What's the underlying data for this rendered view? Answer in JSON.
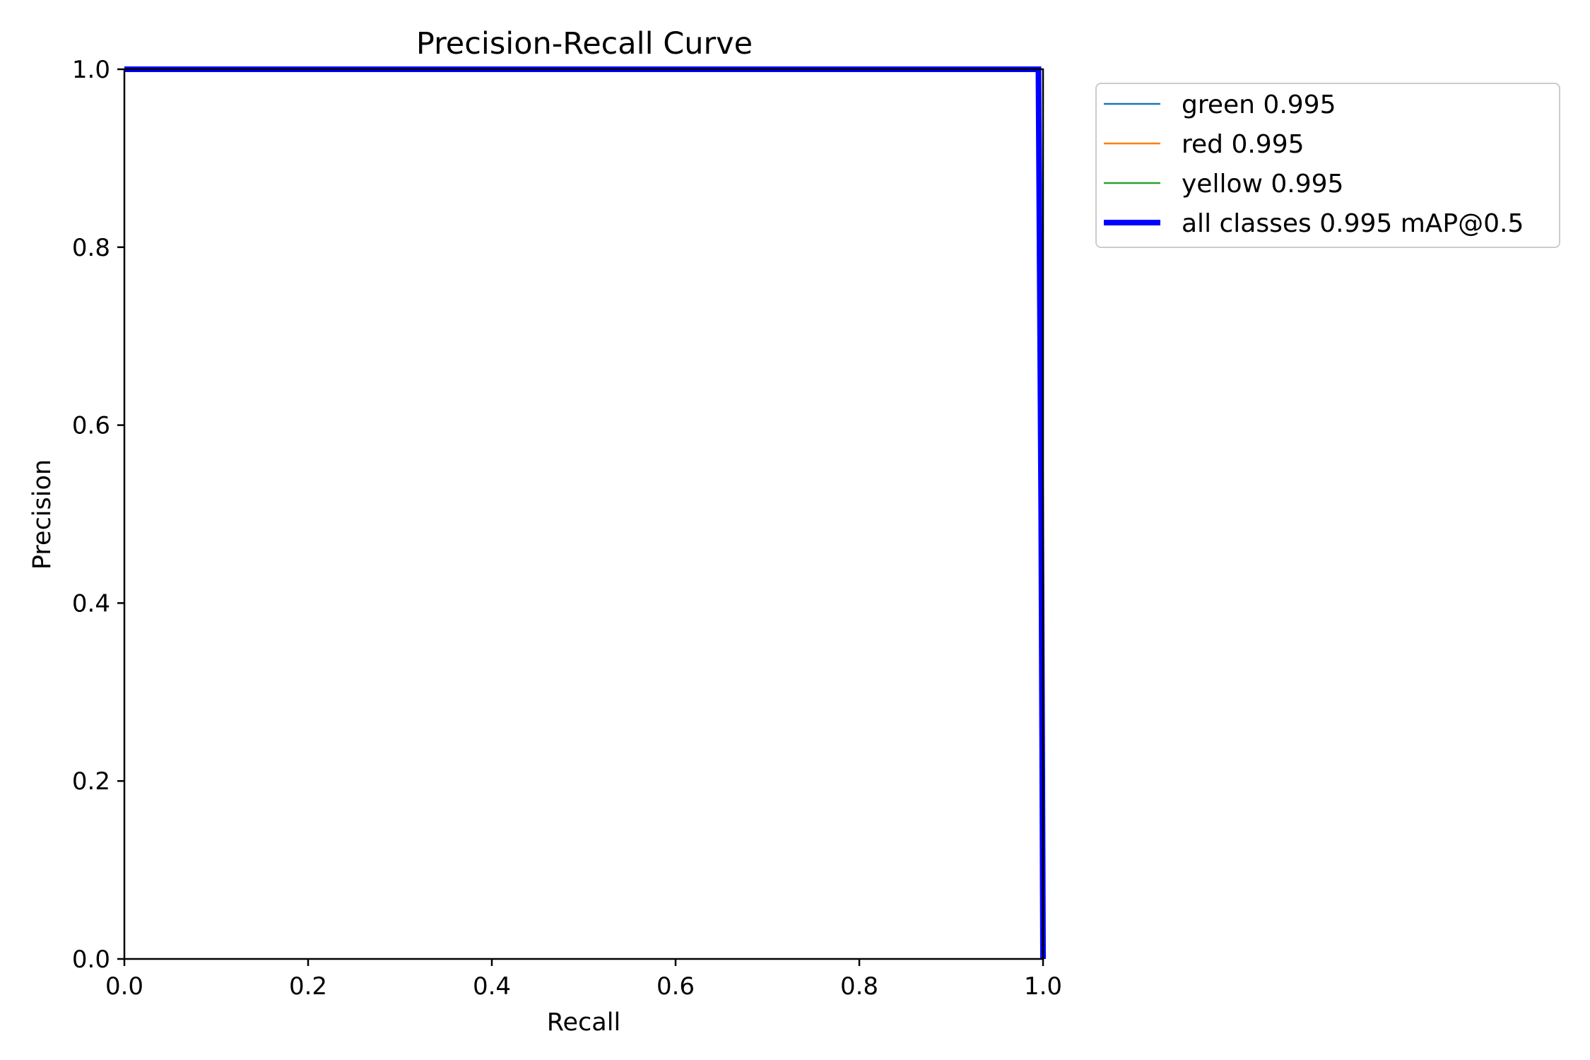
{
  "chart_data": {
    "type": "line",
    "title": "Precision-Recall Curve",
    "xlabel": "Recall",
    "ylabel": "Precision",
    "xlim": [
      0,
      1
    ],
    "ylim": [
      0,
      1
    ],
    "xticks": [
      "0.0",
      "0.2",
      "0.4",
      "0.6",
      "0.8",
      "1.0"
    ],
    "yticks": [
      "0.0",
      "0.2",
      "0.4",
      "0.6",
      "0.8",
      "1.0"
    ],
    "grid": false,
    "legend_position": "outside-top-right",
    "series": [
      {
        "name": "green 0.995",
        "color": "#1f77b4",
        "line": "thin",
        "x": [
          0,
          0.995,
          0.998,
          1.0
        ],
        "y": [
          1.0,
          1.0,
          0.5,
          0.0
        ]
      },
      {
        "name": "red 0.995",
        "color": "#ff7f0e",
        "line": "thin",
        "x": [
          0,
          0.995,
          0.998,
          1.0
        ],
        "y": [
          1.0,
          1.0,
          0.5,
          0.0
        ]
      },
      {
        "name": "yellow 0.995",
        "color": "#2ca02c",
        "line": "thin",
        "x": [
          0,
          0.995,
          0.998,
          1.0
        ],
        "y": [
          1.0,
          1.0,
          0.5,
          0.0
        ]
      },
      {
        "name": "all classes 0.995 mAP@0.5",
        "color": "#0000ff",
        "line": "thick",
        "x": [
          0,
          0.995,
          0.998,
          1.0
        ],
        "y": [
          1.0,
          1.0,
          0.5,
          0.0
        ]
      }
    ]
  }
}
